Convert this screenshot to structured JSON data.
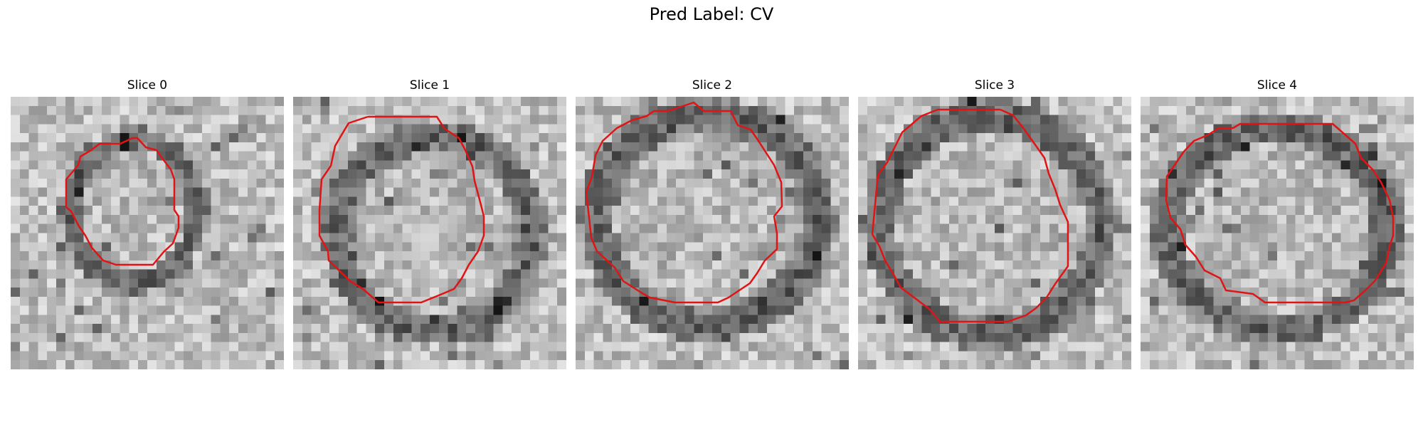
{
  "figure": {
    "title": "Pred Label: CV"
  },
  "panels": [
    {
      "title": "Slice 0"
    },
    {
      "title": "Slice 1"
    },
    {
      "title": "Slice 2"
    },
    {
      "title": "Slice 3"
    },
    {
      "title": "Slice 4"
    }
  ],
  "style": {
    "contour_color": "#e01414",
    "background": "#ffffff"
  }
}
